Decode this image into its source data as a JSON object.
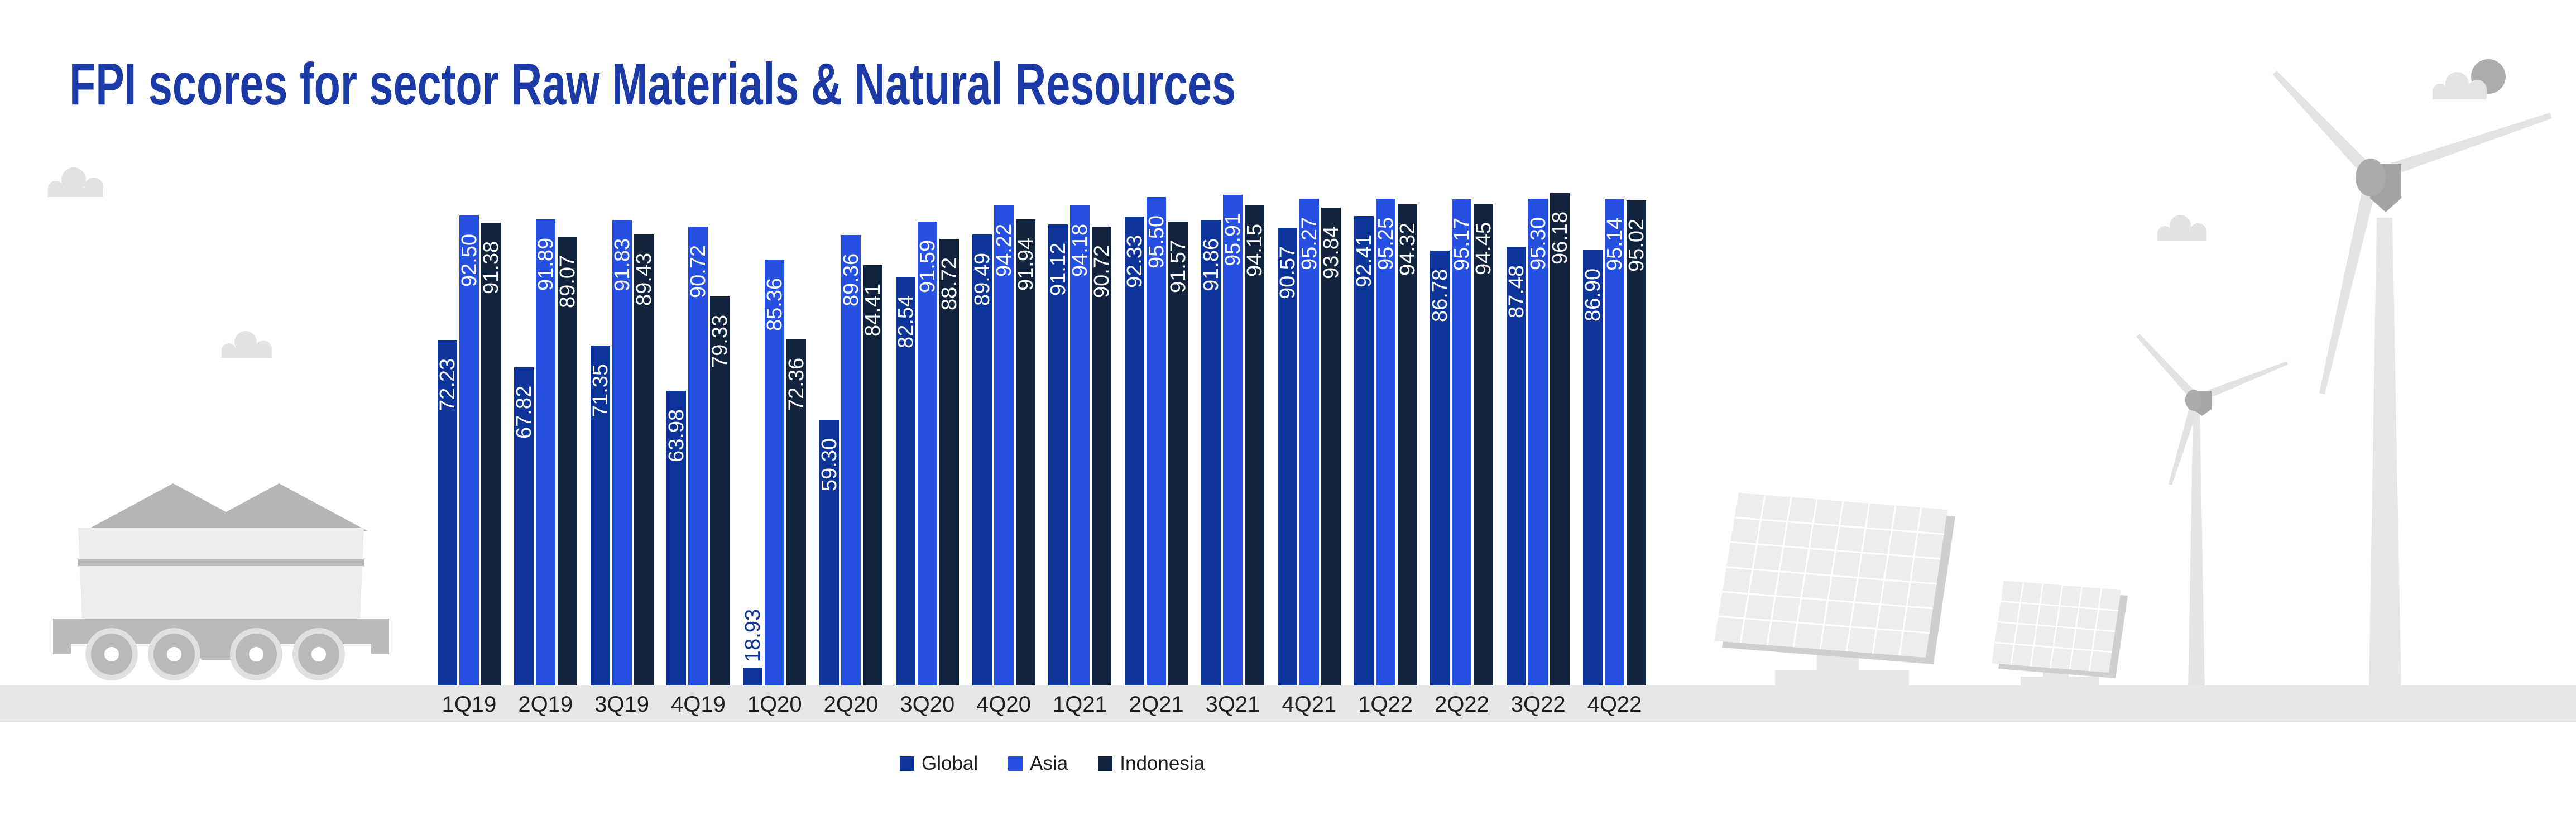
{
  "title": "FPI scores for sector Raw Materials & Natural Resources",
  "title_color": "#1B3AA5",
  "chart_data": {
    "type": "bar",
    "title": "FPI scores for sector Raw Materials & Natural Resources",
    "categories": [
      "1Q19",
      "2Q19",
      "3Q19",
      "4Q19",
      "1Q20",
      "2Q20",
      "3Q20",
      "4Q20",
      "1Q21",
      "2Q21",
      "3Q21",
      "4Q21",
      "1Q22",
      "2Q22",
      "3Q22",
      "4Q22"
    ],
    "series": [
      {
        "name": "Global",
        "color": "#0D3498",
        "values": [
          72.23,
          67.82,
          71.35,
          63.98,
          18.93,
          59.3,
          82.54,
          89.49,
          91.12,
          92.33,
          91.86,
          90.57,
          92.41,
          86.78,
          87.48,
          86.9
        ]
      },
      {
        "name": "Asia",
        "color": "#2650E2",
        "values": [
          92.5,
          91.89,
          91.83,
          90.72,
          85.36,
          89.36,
          91.59,
          94.22,
          94.18,
          95.5,
          95.91,
          95.27,
          95.25,
          95.17,
          95.3,
          95.14
        ]
      },
      {
        "name": "Indonesia",
        "color": "#12233E",
        "values": [
          91.38,
          89.07,
          89.43,
          79.33,
          72.36,
          84.41,
          88.72,
          91.94,
          90.72,
          91.57,
          94.15,
          93.84,
          94.32,
          94.45,
          96.18,
          95.02
        ]
      }
    ],
    "value_labels": "on each bar, rotated 90deg, two decimals, white inside bar (dark blue above bar when bar too short)",
    "xlabel": "",
    "ylabel": "",
    "ylim": [
      16,
      100
    ],
    "grid": false,
    "legend_position": "bottom-center"
  },
  "legend": {
    "items": [
      {
        "label": "Global",
        "color": "#0D3498"
      },
      {
        "label": "Asia",
        "color": "#2650E2"
      },
      {
        "label": "Indonesia",
        "color": "#12233E"
      }
    ]
  },
  "decorations": {
    "ground_color": "#E7E7E7",
    "light_gray": "#E4E4E4",
    "mid_gray": "#B5B5B5",
    "icons": [
      "cloud-icon",
      "coal-cart-icon",
      "solar-panel-icon",
      "wind-turbine-icon",
      "sun-icon"
    ]
  }
}
